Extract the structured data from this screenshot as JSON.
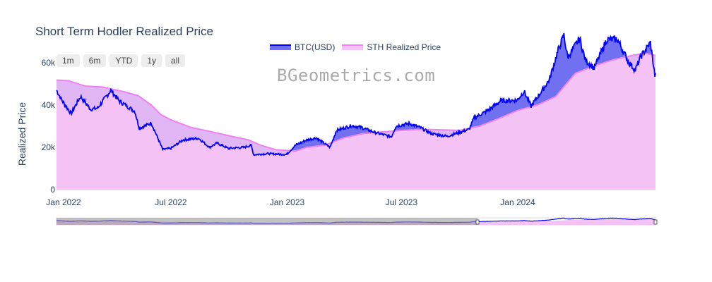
{
  "title": "Short Term Hodler Realized Price",
  "watermark": "BGeometrics.com",
  "range_buttons": [
    "1m",
    "6m",
    "YTD",
    "1y",
    "all"
  ],
  "colors": {
    "btc": "#0000ff",
    "btc_fill": "#7070f0",
    "sth": "#ee82ee",
    "sth_fill": "#f4c2f4",
    "selector_mask": "#999999"
  },
  "chart_data": {
    "type": "area",
    "title": "Short Term Hodler Realized Price",
    "ylabel": "Realized Price",
    "xlabel": "",
    "ylim": [
      0,
      75000
    ],
    "xlim": [
      "2022-01-01",
      "2024-08-06"
    ],
    "legend_position": "top",
    "grid": false,
    "x_ticks": [
      "Jan 2022",
      "Jul 2022",
      "Jan 2023",
      "Jul 2023",
      "Jan 2024"
    ],
    "y_ticks": [
      "0",
      "20k",
      "40k",
      "60k"
    ],
    "range_slider": true,
    "series": [
      {
        "name": "BTC(USD)",
        "points": [
          [
            "2022-01-01",
            47000
          ],
          [
            "2022-01-10",
            42000
          ],
          [
            "2022-01-24",
            36000
          ],
          [
            "2022-02-08",
            44000
          ],
          [
            "2022-02-24",
            38000
          ],
          [
            "2022-03-07",
            38500
          ],
          [
            "2022-03-28",
            47000
          ],
          [
            "2022-04-10",
            42000
          ],
          [
            "2022-04-25",
            39000
          ],
          [
            "2022-05-05",
            37000
          ],
          [
            "2022-05-12",
            29000
          ],
          [
            "2022-05-31",
            31500
          ],
          [
            "2022-06-13",
            22500
          ],
          [
            "2022-06-18",
            19000
          ],
          [
            "2022-07-01",
            19500
          ],
          [
            "2022-07-20",
            23500
          ],
          [
            "2022-08-14",
            24300
          ],
          [
            "2022-08-31",
            20000
          ],
          [
            "2022-09-12",
            22000
          ],
          [
            "2022-09-30",
            19500
          ],
          [
            "2022-10-25",
            20000
          ],
          [
            "2022-11-05",
            21000
          ],
          [
            "2022-11-09",
            16500
          ],
          [
            "2022-12-01",
            17000
          ],
          [
            "2022-12-31",
            16600
          ],
          [
            "2023-01-14",
            21000
          ],
          [
            "2023-02-01",
            23500
          ],
          [
            "2023-02-16",
            24500
          ],
          [
            "2023-03-10",
            20000
          ],
          [
            "2023-03-20",
            28000
          ],
          [
            "2023-04-13",
            30300
          ],
          [
            "2023-04-30",
            29300
          ],
          [
            "2023-05-20",
            27000
          ],
          [
            "2023-06-15",
            25000
          ],
          [
            "2023-06-22",
            30000
          ],
          [
            "2023-07-13",
            31300
          ],
          [
            "2023-07-31",
            29300
          ],
          [
            "2023-08-17",
            26500
          ],
          [
            "2023-09-11",
            25200
          ],
          [
            "2023-09-30",
            27000
          ],
          [
            "2023-10-16",
            28500
          ],
          [
            "2023-10-24",
            34000
          ],
          [
            "2023-11-15",
            37500
          ],
          [
            "2023-12-05",
            42000
          ],
          [
            "2023-12-31",
            42300
          ],
          [
            "2024-01-11",
            46500
          ],
          [
            "2024-01-22",
            39500
          ],
          [
            "2024-02-10",
            47500
          ],
          [
            "2024-02-20",
            52000
          ],
          [
            "2024-03-05",
            66000
          ],
          [
            "2024-03-14",
            73000
          ],
          [
            "2024-03-20",
            62500
          ],
          [
            "2024-04-08",
            71500
          ],
          [
            "2024-04-17",
            61300
          ],
          [
            "2024-05-01",
            57500
          ],
          [
            "2024-05-21",
            71000
          ],
          [
            "2024-06-07",
            71000
          ],
          [
            "2024-06-24",
            60500
          ],
          [
            "2024-07-05",
            56500
          ],
          [
            "2024-07-14",
            63000
          ],
          [
            "2024-07-29",
            69500
          ],
          [
            "2024-08-05",
            54000
          ]
        ]
      },
      {
        "name": "STH Realized Price",
        "points": [
          [
            "2022-01-01",
            51800
          ],
          [
            "2022-01-20",
            51500
          ],
          [
            "2022-02-15",
            49000
          ],
          [
            "2022-03-15",
            48500
          ],
          [
            "2022-04-15",
            46500
          ],
          [
            "2022-05-10",
            44500
          ],
          [
            "2022-05-31",
            40000
          ],
          [
            "2022-06-15",
            35500
          ],
          [
            "2022-07-01",
            33000
          ],
          [
            "2022-08-01",
            29500
          ],
          [
            "2022-09-01",
            27500
          ],
          [
            "2022-10-01",
            25500
          ],
          [
            "2022-11-01",
            23500
          ],
          [
            "2022-11-20",
            21000
          ],
          [
            "2022-12-15",
            18800
          ],
          [
            "2023-01-15",
            18300
          ],
          [
            "2023-02-01",
            20000
          ],
          [
            "2023-03-01",
            21000
          ],
          [
            "2023-04-01",
            24500
          ],
          [
            "2023-05-01",
            26500
          ],
          [
            "2023-06-01",
            27300
          ],
          [
            "2023-07-01",
            28000
          ],
          [
            "2023-08-01",
            28500
          ],
          [
            "2023-09-01",
            28300
          ],
          [
            "2023-10-01",
            28000
          ],
          [
            "2023-11-01",
            30000
          ],
          [
            "2023-12-01",
            33500
          ],
          [
            "2024-01-01",
            37500
          ],
          [
            "2024-02-01",
            40000
          ],
          [
            "2024-03-01",
            44000
          ],
          [
            "2024-03-15",
            49000
          ],
          [
            "2024-04-01",
            55000
          ],
          [
            "2024-05-01",
            58500
          ],
          [
            "2024-06-01",
            61500
          ],
          [
            "2024-07-01",
            63500
          ],
          [
            "2024-07-20",
            64500
          ],
          [
            "2024-08-05",
            63500
          ]
        ]
      }
    ]
  }
}
